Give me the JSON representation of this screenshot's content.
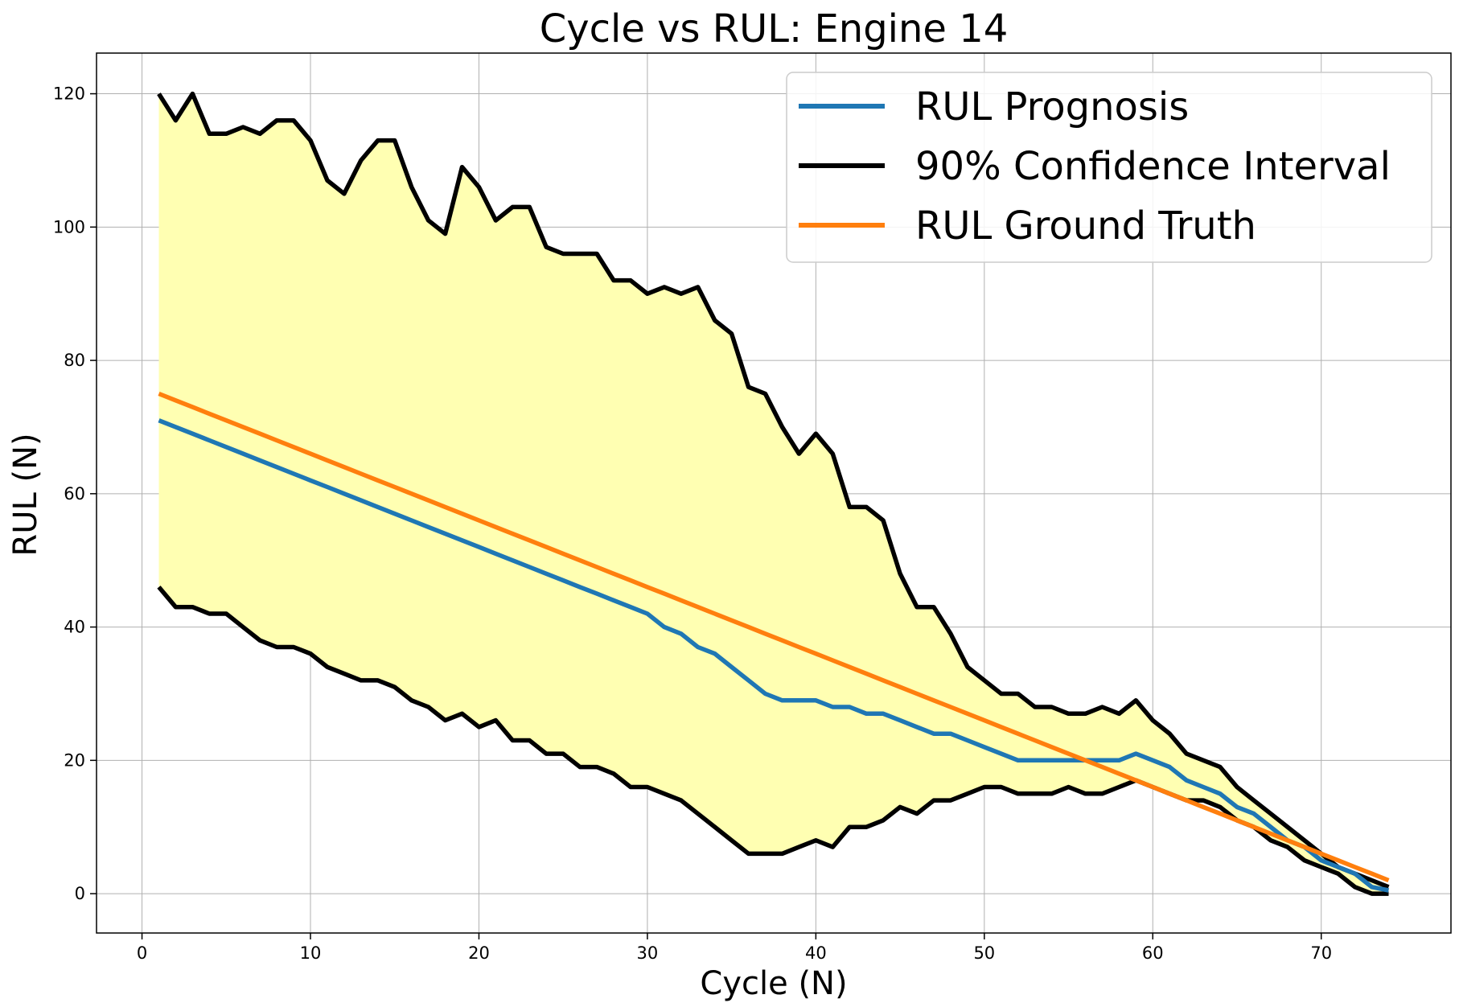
{
  "chart_data": {
    "type": "line",
    "title": "Cycle vs RUL: Engine 14",
    "xlabel": "Cycle (N)",
    "ylabel": "RUL (N)",
    "xlim": [
      -2.7,
      77.7
    ],
    "ylim": [
      -5.9,
      126.1
    ],
    "xticks": [
      0,
      10,
      20,
      30,
      40,
      50,
      60,
      70
    ],
    "yticks": [
      0,
      20,
      40,
      60,
      80,
      100,
      120
    ],
    "grid": true,
    "legend_position": "top-right",
    "x": [
      1,
      2,
      3,
      4,
      5,
      6,
      7,
      8,
      9,
      10,
      11,
      12,
      13,
      14,
      15,
      16,
      17,
      18,
      19,
      20,
      21,
      22,
      23,
      24,
      25,
      26,
      27,
      28,
      29,
      30,
      31,
      32,
      33,
      34,
      35,
      36,
      37,
      38,
      39,
      40,
      41,
      42,
      43,
      44,
      45,
      46,
      47,
      48,
      49,
      50,
      51,
      52,
      53,
      54,
      55,
      56,
      57,
      58,
      59,
      60,
      61,
      62,
      63,
      64,
      65,
      66,
      67,
      68,
      69,
      70,
      71,
      72,
      73,
      74
    ],
    "series": [
      {
        "name": "RUL Prognosis",
        "color": "#1f77b4",
        "values": [
          71,
          70,
          69,
          68,
          67,
          66,
          65,
          64,
          63,
          62,
          61,
          60,
          59,
          58,
          57,
          56,
          55,
          54,
          53,
          52,
          51,
          50,
          49,
          48,
          47,
          46,
          45,
          44,
          43,
          42,
          40,
          39,
          37,
          36,
          34,
          32,
          30,
          29,
          29,
          29,
          28,
          28,
          27,
          27,
          26,
          25,
          24,
          24,
          23,
          22,
          21,
          20,
          20,
          20,
          20,
          20,
          20,
          20,
          21,
          20,
          19,
          17,
          16,
          15,
          13,
          12,
          10,
          8,
          7,
          5,
          4,
          3,
          1,
          0.5
        ]
      },
      {
        "name": "90% Confidence Interval",
        "color": "#000000",
        "upper": [
          120,
          116,
          120,
          114,
          114,
          115,
          114,
          116,
          116,
          113,
          107,
          105,
          110,
          113,
          113,
          106,
          101,
          99,
          109,
          106,
          101,
          103,
          103,
          97,
          96,
          96,
          96,
          92,
          92,
          90,
          91,
          90,
          91,
          86,
          84,
          76,
          75,
          70,
          66,
          69,
          66,
          58,
          58,
          56,
          48,
          43,
          43,
          39,
          34,
          32,
          30,
          30,
          28,
          28,
          27,
          27,
          28,
          27,
          29,
          26,
          24,
          21,
          20,
          19,
          16,
          14,
          12,
          10,
          8,
          6,
          4,
          3,
          2,
          1
        ],
        "lower": [
          46,
          43,
          43,
          42,
          42,
          40,
          38,
          37,
          37,
          36,
          34,
          33,
          32,
          32,
          31,
          29,
          28,
          26,
          27,
          25,
          26,
          23,
          23,
          21,
          21,
          19,
          19,
          18,
          16,
          16,
          15,
          14,
          12,
          10,
          8,
          6,
          6,
          6,
          7,
          8,
          7,
          10,
          10,
          11,
          13,
          12,
          14,
          14,
          15,
          16,
          16,
          15,
          15,
          15,
          16,
          15,
          15,
          16,
          17,
          16,
          15,
          14,
          14,
          13,
          11,
          10,
          8,
          7,
          5,
          4,
          3,
          1,
          0,
          0
        ]
      },
      {
        "name": "RUL Ground Truth",
        "color": "#ff7f0e",
        "values": [
          75,
          74,
          73,
          72,
          71,
          70,
          69,
          68,
          67,
          66,
          65,
          64,
          63,
          62,
          61,
          60,
          59,
          58,
          57,
          56,
          55,
          54,
          53,
          52,
          51,
          50,
          49,
          48,
          47,
          46,
          45,
          44,
          43,
          42,
          41,
          40,
          39,
          38,
          37,
          36,
          35,
          34,
          33,
          32,
          31,
          30,
          29,
          28,
          27,
          26,
          25,
          24,
          23,
          22,
          21,
          20,
          19,
          18,
          17,
          16,
          15,
          14,
          13,
          12,
          11,
          10,
          9,
          8,
          7,
          6,
          5,
          4,
          3,
          2
        ]
      }
    ],
    "fill_color": "#ffffb2"
  }
}
